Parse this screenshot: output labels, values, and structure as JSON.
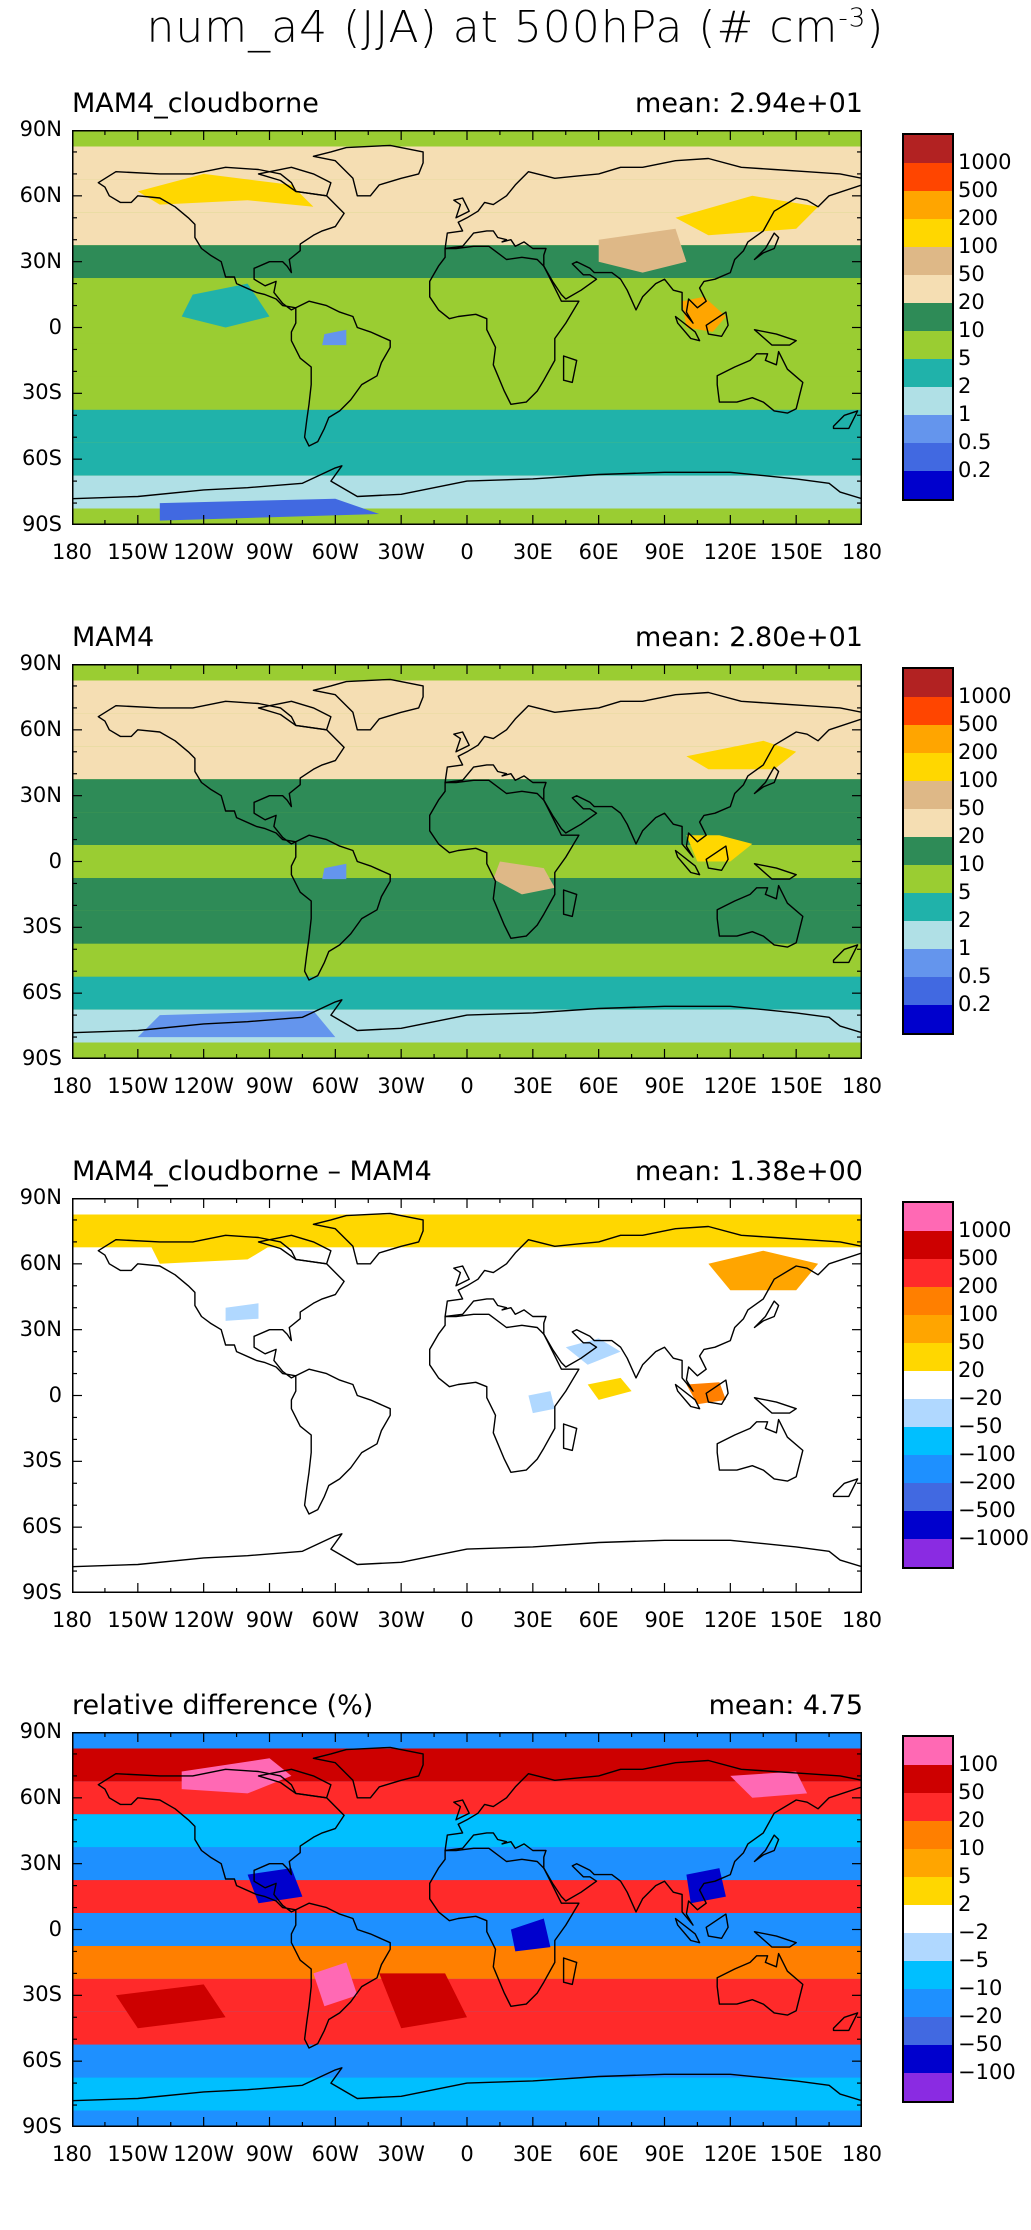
{
  "figure": {
    "title_main": "num_a4 (JJA) at 500hPa (# cm",
    "title_sup": "-3",
    "title_end": ")"
  },
  "axes": {
    "lat_labels": [
      "90N",
      "60N",
      "30N",
      "0",
      "30S",
      "60S",
      "90S"
    ],
    "lon_labels": [
      "180",
      "150W",
      "120W",
      "90W",
      "60W",
      "30W",
      "0",
      "30E",
      "60E",
      "90E",
      "120E",
      "150E",
      "180"
    ]
  },
  "panels": [
    {
      "title": "MAM4_cloudborne",
      "mean": "mean:  2.94e+01",
      "legend": [
        "1000",
        "500",
        "200",
        "100",
        "50",
        "20",
        "10",
        "5",
        "2",
        "1",
        "0.5",
        "0.2"
      ],
      "colors": [
        "#b22222",
        "#ff4500",
        "#ffa500",
        "#ffd700",
        "#deb887",
        "#f5deb3",
        "#2e8b57",
        "#9acd32",
        "#20b2aa",
        "#b0e0e6",
        "#6495ed",
        "#4169e1",
        "#0000cd"
      ]
    },
    {
      "title": "MAM4",
      "mean": "mean:  2.80e+01",
      "legend": [
        "1000",
        "500",
        "200",
        "100",
        "50",
        "20",
        "10",
        "5",
        "2",
        "1",
        "0.5",
        "0.2"
      ],
      "colors": [
        "#b22222",
        "#ff4500",
        "#ffa500",
        "#ffd700",
        "#deb887",
        "#f5deb3",
        "#2e8b57",
        "#9acd32",
        "#20b2aa",
        "#b0e0e6",
        "#6495ed",
        "#4169e1",
        "#0000cd"
      ]
    },
    {
      "title": "MAM4_cloudborne – MAM4",
      "mean": "mean:  1.38e+00",
      "legend": [
        "1000",
        "500",
        "200",
        "100",
        "50",
        "20",
        "−20",
        "−50",
        "−100",
        "−200",
        "−500",
        "−1000"
      ],
      "colors": [
        "#ff69b4",
        "#cd0000",
        "#ff2a2a",
        "#ff7f00",
        "#ffa500",
        "#ffd700",
        "#ffffff",
        "#b0d8ff",
        "#00bfff",
        "#1e90ff",
        "#4169e1",
        "#0000cd",
        "#8a2be2"
      ]
    },
    {
      "title": "relative difference (%)",
      "mean": "mean:   4.75",
      "legend": [
        "100",
        "50",
        "20",
        "10",
        "5",
        "2",
        "−2",
        "−5",
        "−10",
        "−20",
        "−50",
        "−100"
      ],
      "colors": [
        "#ff69b4",
        "#cd0000",
        "#ff2a2a",
        "#ff7f00",
        "#ffa500",
        "#ffd700",
        "#ffffff",
        "#b0d8ff",
        "#00bfff",
        "#1e90ff",
        "#4169e1",
        "#0000cd",
        "#8a2be2"
      ]
    }
  ],
  "chart_data": [
    {
      "type": "heatmap",
      "title": "MAM4_cloudborne",
      "annotation": "mean:  2.94e+01",
      "x_ticks": [
        "180",
        "150W",
        "120W",
        "90W",
        "60W",
        "30W",
        "0",
        "30E",
        "60E",
        "90E",
        "120E",
        "150E",
        "180"
      ],
      "y_ticks": [
        "90N",
        "60N",
        "30N",
        "0",
        "30S",
        "60S",
        "90S"
      ],
      "xlim": [
        -180,
        180
      ],
      "ylim": [
        -90,
        90
      ],
      "color_levels": [
        0.2,
        0.5,
        1,
        2,
        5,
        10,
        20,
        50,
        100,
        200,
        500,
        1000
      ],
      "zonal_band_values": {
        "lat": [
          75,
          60,
          45,
          30,
          15,
          0,
          -15,
          -30,
          -45,
          -60,
          -75
        ],
        "value": [
          40,
          35,
          20,
          12,
          8,
          6,
          5,
          6,
          4,
          2,
          1
        ]
      }
    },
    {
      "type": "heatmap",
      "title": "MAM4",
      "annotation": "mean:  2.80e+01",
      "x_ticks": [
        "180",
        "150W",
        "120W",
        "90W",
        "60W",
        "30W",
        "0",
        "30E",
        "60E",
        "90E",
        "120E",
        "150E",
        "180"
      ],
      "y_ticks": [
        "90N",
        "60N",
        "30N",
        "0",
        "30S",
        "60S",
        "90S"
      ],
      "xlim": [
        -180,
        180
      ],
      "ylim": [
        -90,
        90
      ],
      "color_levels": [
        0.2,
        0.5,
        1,
        2,
        5,
        10,
        20,
        50,
        100,
        200,
        500,
        1000
      ],
      "zonal_band_values": {
        "lat": [
          75,
          60,
          45,
          30,
          15,
          0,
          -15,
          -30,
          -45,
          -60,
          -75
        ],
        "value": [
          35,
          30,
          20,
          15,
          10,
          8,
          10,
          12,
          6,
          3,
          1.5
        ]
      }
    },
    {
      "type": "heatmap",
      "title": "MAM4_cloudborne – MAM4",
      "annotation": "mean:  1.38e+00",
      "x_ticks": [
        "180",
        "150W",
        "120W",
        "90W",
        "60W",
        "30W",
        "0",
        "30E",
        "60E",
        "90E",
        "120E",
        "150E",
        "180"
      ],
      "y_ticks": [
        "90N",
        "60N",
        "30N",
        "0",
        "30S",
        "60S",
        "90S"
      ],
      "xlim": [
        -180,
        180
      ],
      "ylim": [
        -90,
        90
      ],
      "color_levels": [
        -1000,
        -500,
        -200,
        -100,
        -50,
        -20,
        20,
        50,
        100,
        200,
        500,
        1000
      ],
      "zonal_band_values": {
        "lat": [
          75,
          60,
          45,
          30,
          15,
          0,
          -15,
          -30,
          -45,
          -60,
          -75
        ],
        "value": [
          25,
          15,
          0,
          -10,
          0,
          10,
          0,
          0,
          0,
          0,
          0
        ]
      }
    },
    {
      "type": "heatmap",
      "title": "relative difference (%)",
      "annotation": "mean:   4.75",
      "x_ticks": [
        "180",
        "150W",
        "120W",
        "90W",
        "60W",
        "30W",
        "0",
        "30E",
        "60E",
        "90E",
        "120E",
        "150E",
        "180"
      ],
      "y_ticks": [
        "90N",
        "60N",
        "30N",
        "0",
        "30S",
        "60S",
        "90S"
      ],
      "xlim": [
        -180,
        180
      ],
      "ylim": [
        -90,
        90
      ],
      "color_levels": [
        -100,
        -50,
        -20,
        -10,
        -5,
        -2,
        2,
        5,
        10,
        20,
        50,
        100
      ],
      "zonal_band_values": {
        "lat": [
          75,
          60,
          45,
          30,
          15,
          0,
          -15,
          -30,
          -45,
          -60,
          -75
        ],
        "value": [
          60,
          30,
          -10,
          -15,
          20,
          -20,
          10,
          40,
          30,
          -20,
          -10
        ]
      }
    }
  ]
}
